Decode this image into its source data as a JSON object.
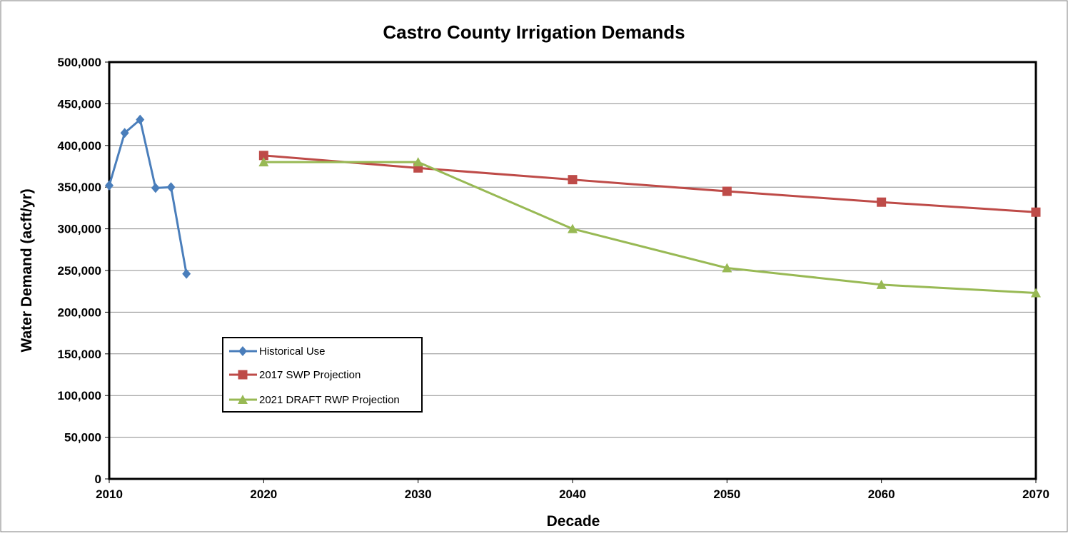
{
  "chart_data": {
    "type": "line",
    "title": "Castro County Irrigation Demands",
    "xlabel": "Decade",
    "ylabel": "Water Demand (acft/yr)",
    "xlim": [
      2010,
      2070
    ],
    "ylim": [
      0,
      500000
    ],
    "x_ticks": [
      2010,
      2020,
      2030,
      2040,
      2050,
      2060,
      2070
    ],
    "x_tick_labels": [
      "2010",
      "2020",
      "2030",
      "2040",
      "2050",
      "2060",
      "2070"
    ],
    "y_ticks": [
      0,
      50000,
      100000,
      150000,
      200000,
      250000,
      300000,
      350000,
      400000,
      450000,
      500000
    ],
    "y_tick_labels": [
      "0",
      "50,000",
      "100,000",
      "150,000",
      "200,000",
      "250,000",
      "300,000",
      "350,000",
      "400,000",
      "450,000",
      "500,000"
    ],
    "grid": "horizontal",
    "legend_position": "lower-left",
    "series": [
      {
        "name": "Historical Use",
        "color": "#4a7ebb",
        "marker": "diamond",
        "x": [
          2010,
          2011,
          2012,
          2013,
          2014,
          2015
        ],
        "y": [
          352000,
          415000,
          431000,
          349000,
          350000,
          246000
        ]
      },
      {
        "name": "2017 SWP Projection",
        "color": "#be4b48",
        "marker": "square",
        "x": [
          2020,
          2030,
          2040,
          2050,
          2060,
          2070
        ],
        "y": [
          388000,
          373000,
          359000,
          345000,
          332000,
          320000
        ]
      },
      {
        "name": "2021 DRAFT RWP Projection",
        "color": "#98b954",
        "marker": "triangle",
        "x": [
          2020,
          2030,
          2040,
          2050,
          2060,
          2070
        ],
        "y": [
          380000,
          380000,
          300000,
          253000,
          233000,
          223000
        ]
      }
    ]
  }
}
